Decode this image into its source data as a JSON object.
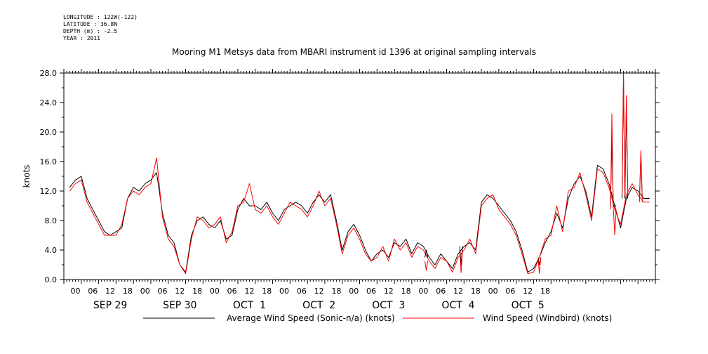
{
  "header": {
    "longitude": "LONGITUDE : 122W(-122)",
    "latitude": "LATITUDE : 36.8N",
    "depth": "DEPTH (m) : -2.5",
    "year": "YEAR : 2011"
  },
  "chart_data": {
    "type": "line",
    "title": "Mooring M1 Metsys data from MBARI instrument id 1396 at original sampling intervals",
    "ylabel": "knots",
    "xlabel": "",
    "ylim": [
      0,
      28
    ],
    "yticks": [
      "0.0",
      "4.0",
      "8.0",
      "12.0",
      "16.0",
      "20.0",
      "24.0",
      "28.0"
    ],
    "x_unit": "hours since SEP 28 22:00 (axis starts ~SEP 28 20:00)",
    "xlim": [
      -2,
      202
    ],
    "hour_tick_labels": [
      "00",
      "06",
      "12",
      "18",
      "00",
      "06",
      "12",
      "18",
      "00",
      "06",
      "12",
      "18",
      "00",
      "06",
      "12",
      "18",
      "00",
      "06",
      "12",
      "18",
      "00",
      "06",
      "12",
      "18",
      "00",
      "06",
      "12",
      "18"
    ],
    "day_labels": [
      "SEP 29",
      "SEP 30",
      "OCT  1",
      "OCT  2",
      "OCT  3",
      "OCT  4",
      "OCT  5"
    ],
    "grid": false,
    "legend_position": "bottom",
    "series": [
      {
        "name": "Average Wind Speed (Sonic-n/a) (knots)",
        "color": "#000000",
        "x": [
          0,
          2,
          4,
          6,
          8,
          10,
          12,
          14,
          16,
          18,
          20,
          22,
          24,
          26,
          28,
          30,
          32,
          34,
          36,
          38,
          40,
          42,
          44,
          46,
          48,
          50,
          52,
          54,
          56,
          58,
          60,
          62,
          64,
          66,
          68,
          70,
          72,
          74,
          76,
          78,
          80,
          82,
          84,
          86,
          88,
          90,
          92,
          94,
          96,
          98,
          100,
          102,
          104,
          106,
          108,
          110,
          112,
          114,
          116,
          118,
          120,
          122,
          124,
          126,
          128,
          130,
          132,
          134,
          136,
          138,
          140,
          142,
          144,
          146,
          148,
          150,
          152,
          154,
          156,
          158,
          160,
          162,
          164,
          166,
          168,
          170,
          172,
          174,
          176,
          178,
          180,
          182,
          184,
          186,
          188,
          190,
          192,
          194,
          196,
          198,
          200
        ],
        "values": [
          12.5,
          13.5,
          14.0,
          11.0,
          9.5,
          8.0,
          6.5,
          6.0,
          6.5,
          7.0,
          11.0,
          12.5,
          12.0,
          13.0,
          13.5,
          14.5,
          9.0,
          6.0,
          5.0,
          2.0,
          1.0,
          6.0,
          8.0,
          8.5,
          7.5,
          7.0,
          8.0,
          5.5,
          6.0,
          9.5,
          11.0,
          10.0,
          10.0,
          9.5,
          10.5,
          9.0,
          8.0,
          9.5,
          10.0,
          10.5,
          10.0,
          9.0,
          10.5,
          11.5,
          10.5,
          11.5,
          8.0,
          4.0,
          6.5,
          7.5,
          6.0,
          4.0,
          2.5,
          3.5,
          4.0,
          3.0,
          5.0,
          4.5,
          5.5,
          3.5,
          5.0,
          4.5,
          3.0,
          2.0,
          3.5,
          2.5,
          1.5,
          3.5,
          4.5,
          5.0,
          4.0,
          10.5,
          11.5,
          11.0,
          10.0,
          9.0,
          8.0,
          6.5,
          4.0,
          1.0,
          1.5,
          3.0,
          5.0,
          6.5,
          9.0,
          7.0,
          11.0,
          13.0,
          14.0,
          12.0,
          8.5,
          15.5,
          15.0,
          13.0,
          10.0,
          7.0,
          11.0,
          12.5,
          12.0,
          11.0,
          11.0
        ]
      },
      {
        "name": "Wind Speed (Windbird) (knots)",
        "color": "#ff0000",
        "x": [
          0,
          2,
          4,
          6,
          8,
          10,
          12,
          14,
          16,
          18,
          20,
          22,
          24,
          26,
          28,
          30,
          32,
          34,
          36,
          38,
          40,
          42,
          44,
          46,
          48,
          50,
          52,
          54,
          56,
          58,
          60,
          62,
          64,
          66,
          68,
          70,
          72,
          74,
          76,
          78,
          80,
          82,
          84,
          86,
          88,
          90,
          92,
          94,
          96,
          98,
          100,
          102,
          104,
          106,
          108,
          110,
          112,
          114,
          116,
          118,
          120,
          122,
          124,
          126,
          128,
          130,
          132,
          134,
          136,
          138,
          140,
          142,
          144,
          146,
          148,
          150,
          152,
          154,
          156,
          158,
          160,
          162,
          164,
          166,
          168,
          170,
          172,
          174,
          176,
          178,
          180,
          182,
          184,
          186,
          188,
          190,
          192,
          194,
          196,
          198,
          200
        ],
        "values": [
          12.0,
          13.0,
          13.5,
          10.5,
          9.0,
          7.5,
          6.0,
          6.0,
          6.0,
          7.5,
          11.0,
          12.0,
          11.5,
          12.5,
          13.0,
          16.5,
          8.5,
          5.5,
          4.5,
          2.0,
          0.8,
          5.5,
          8.5,
          8.0,
          7.0,
          7.5,
          8.5,
          5.0,
          6.5,
          10.0,
          10.5,
          13.0,
          9.5,
          9.0,
          10.0,
          8.5,
          7.5,
          9.0,
          10.5,
          10.0,
          9.5,
          8.5,
          10.0,
          12.0,
          10.0,
          11.0,
          7.5,
          3.5,
          6.0,
          7.0,
          5.5,
          3.5,
          2.5,
          3.0,
          4.5,
          2.5,
          5.5,
          4.0,
          5.0,
          3.0,
          4.5,
          4.0,
          2.5,
          1.5,
          3.0,
          2.5,
          1.0,
          3.0,
          4.0,
          5.5,
          3.5,
          10.0,
          11.0,
          11.5,
          9.5,
          8.5,
          7.5,
          6.0,
          3.5,
          0.8,
          1.0,
          3.0,
          5.5,
          6.0,
          10.0,
          6.5,
          12.0,
          12.5,
          14.5,
          11.5,
          8.0,
          15.0,
          14.5,
          12.5,
          9.5,
          7.5,
          11.5,
          13.0,
          11.5,
          10.5,
          10.5
        ]
      }
    ],
    "overlay_spikes": [
      {
        "x": 123,
        "values": [
          4.0,
          1.2
        ]
      },
      {
        "x": 135,
        "values": [
          2.0,
          0.9
        ]
      },
      {
        "x": 162,
        "values": [
          2.0,
          0.8
        ]
      },
      {
        "x": 187,
        "values": [
          19.0,
          22.5
        ]
      },
      {
        "x": 188,
        "values": [
          10.0,
          6.0
        ]
      },
      {
        "x": 191,
        "values": [
          27.5,
          28.0
        ]
      },
      {
        "x": 192,
        "values": [
          24.0,
          25.0
        ]
      },
      {
        "x": 197,
        "values": [
          17.0,
          17.5
        ]
      }
    ]
  }
}
